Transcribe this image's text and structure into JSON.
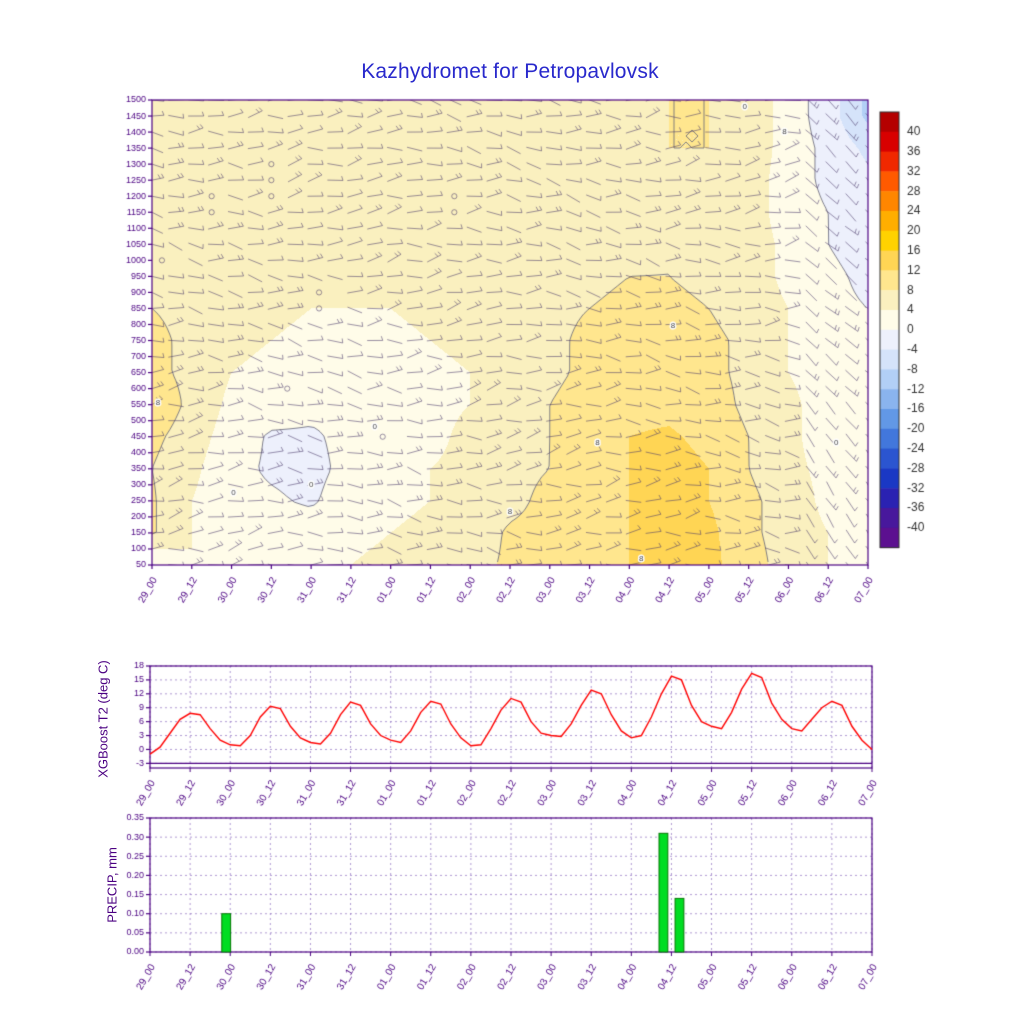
{
  "title": "Kazhydromet for Petropavlovsk",
  "style": {
    "axis_color": "#4b0082",
    "grid_color": "#9b7fc7",
    "title_color": "#2929cc",
    "barb_color": "#4a3a6a",
    "contour_line_color": "#666677",
    "colorbar_label_color": "#333333"
  },
  "time_labels": [
    "29_00",
    "29_12",
    "30_00",
    "30_12",
    "31_00",
    "31_12",
    "01_00",
    "01_12",
    "02_00",
    "02_12",
    "03_00",
    "03_12",
    "04_00",
    "04_12",
    "05_00",
    "05_12",
    "06_00",
    "06_12",
    "07_00"
  ],
  "chart_data": [
    {
      "type": "heatmap",
      "name": "temperature-time-height-section",
      "y_ticks": [
        50,
        100,
        150,
        200,
        250,
        300,
        350,
        400,
        450,
        500,
        550,
        600,
        650,
        700,
        750,
        800,
        850,
        900,
        950,
        1000,
        1050,
        1100,
        1150,
        1200,
        1250,
        1300,
        1350,
        1400,
        1450,
        1500
      ],
      "levels": [
        50,
        150,
        250,
        350,
        450,
        550,
        650,
        750,
        850,
        950,
        1050,
        1150,
        1250,
        1350,
        1450
      ],
      "values_grid_degC": [
        [
          -0.5,
          4,
          3,
          3,
          3,
          4,
          5,
          6,
          7,
          8.5,
          9,
          10,
          12,
          14,
          13,
          10,
          6,
          4,
          3
        ],
        [
          8.5,
          4,
          2,
          2,
          2,
          3,
          4,
          5,
          6,
          8.5,
          9,
          10,
          12,
          15,
          13,
          9,
          6,
          4,
          2
        ],
        [
          8.5,
          4,
          1,
          0.5,
          -0.5,
          2,
          3,
          4,
          6,
          7,
          9,
          10,
          12,
          14,
          12,
          9,
          6,
          3,
          2
        ],
        [
          8,
          5,
          1,
          -0.5,
          -1,
          1,
          3,
          4,
          5,
          7,
          8,
          10,
          12,
          13.5,
          12,
          8,
          5,
          3,
          2
        ],
        [
          9,
          6,
          2,
          -0.5,
          -0.5,
          1,
          2,
          3,
          5,
          6,
          8,
          10,
          12,
          12.5,
          11,
          8,
          5,
          2,
          1
        ],
        [
          11,
          7,
          3,
          2,
          1,
          0.5,
          2,
          3,
          4,
          6,
          8,
          10,
          11,
          11,
          10,
          7,
          5,
          2,
          1
        ],
        [
          9,
          7,
          4,
          3,
          2,
          2,
          2,
          3,
          4,
          6,
          7,
          9,
          10,
          10,
          9,
          7,
          4,
          2,
          1
        ],
        [
          9,
          7,
          5,
          4,
          3,
          3,
          3,
          4,
          5,
          6,
          7,
          9,
          10,
          10,
          9,
          7,
          4,
          2,
          0
        ],
        [
          8,
          7,
          6,
          5,
          4,
          4,
          4,
          5,
          5,
          6,
          7,
          8,
          9,
          9,
          8,
          6,
          4,
          1,
          0
        ],
        [
          7,
          6,
          6,
          6,
          5,
          5,
          5,
          6,
          6,
          6,
          7,
          7,
          8,
          8,
          7,
          6,
          3,
          1,
          -1
        ],
        [
          6,
          6,
          6,
          6,
          6,
          6,
          6,
          6,
          6,
          6,
          7,
          7,
          7,
          8,
          7,
          6,
          3,
          0,
          -2
        ],
        [
          6,
          6,
          6,
          6,
          6,
          6,
          6,
          6,
          6,
          6,
          6,
          7,
          7,
          8,
          7,
          6,
          2,
          0,
          -2
        ],
        [
          6,
          6,
          6,
          6,
          6,
          6,
          6,
          6,
          6,
          6,
          6,
          7,
          7,
          8,
          7,
          6,
          2,
          -1,
          -3
        ],
        [
          6,
          6,
          6,
          6,
          6,
          6,
          6,
          6,
          6,
          6,
          6,
          7,
          7,
          8,
          8,
          7,
          2,
          -1,
          -5
        ],
        [
          6,
          6,
          6,
          6,
          6,
          6,
          6,
          6,
          6,
          6,
          6,
          7,
          7,
          8,
          8,
          7,
          2,
          -2,
          -9
        ]
      ],
      "contour_levels_labeled": [
        0,
        8
      ],
      "contour_labels": [
        {
          "text": "8",
          "t": 0.15,
          "lev": 555
        },
        {
          "text": "0",
          "t": 2.05,
          "lev": 275
        },
        {
          "text": "0",
          "t": 4.0,
          "lev": 300
        },
        {
          "text": "0",
          "t": 5.6,
          "lev": 480
        },
        {
          "text": "8",
          "t": 9.0,
          "lev": 215
        },
        {
          "text": "8",
          "t": 11.2,
          "lev": 430
        },
        {
          "text": "8",
          "t": 12.3,
          "lev": 70
        },
        {
          "text": "8",
          "t": 13.1,
          "lev": 795
        },
        {
          "text": "0",
          "t": 17.2,
          "lev": 430
        },
        {
          "text": "8",
          "t": 15.9,
          "lev": 1400
        },
        {
          "text": "0",
          "t": 14.9,
          "lev": 1480
        }
      ],
      "calm_circles": [
        [
          1.5,
          1200
        ],
        [
          1.5,
          1150
        ],
        [
          3.0,
          1300
        ],
        [
          3.0,
          1250
        ],
        [
          3.0,
          1200
        ],
        [
          4.2,
          900
        ],
        [
          4.2,
          850
        ],
        [
          7.6,
          1200
        ],
        [
          7.6,
          1150
        ],
        [
          3.4,
          600
        ],
        [
          5.8,
          450
        ],
        [
          0.25,
          1000
        ]
      ],
      "colorbar": {
        "tick_labels": [
          40,
          36,
          32,
          28,
          24,
          20,
          16,
          12,
          8,
          4,
          0,
          -4,
          -8,
          -12,
          -16,
          -20,
          -24,
          -28,
          -32,
          -36,
          -40
        ],
        "segment_colors": [
          "#b40000",
          "#d80000",
          "#f02800",
          "#ff5a00",
          "#ff8600",
          "#ffae00",
          "#ffd200",
          "#ffd554",
          "#ffe68e",
          "#faf0bf",
          "#fffce9",
          "#edf0fc",
          "#d5e3fa",
          "#b2cff6",
          "#8ab4ee",
          "#6298e6",
          "#4277dc",
          "#2b55d0",
          "#1a38c4",
          "#2a22b2",
          "#48189c",
          "#5c1090"
        ]
      }
    },
    {
      "type": "line",
      "ylabel": "XGBoost T2 (deg C)",
      "yticks": [
        -3,
        0,
        3,
        6,
        9,
        12,
        15,
        18
      ],
      "ylim": [
        -4,
        18
      ],
      "baseline_value": -3,
      "line_color": "#ff0000",
      "x_step_index": 0.25,
      "values": [
        -1.0,
        0.5,
        3.5,
        6.5,
        7.8,
        7.5,
        4.5,
        2.0,
        1.0,
        0.8,
        3.0,
        7.0,
        9.3,
        8.8,
        5.0,
        2.5,
        1.5,
        1.2,
        3.5,
        7.5,
        10.2,
        9.5,
        5.5,
        3.0,
        2.0,
        1.5,
        4.0,
        8.0,
        10.4,
        9.8,
        5.5,
        2.5,
        0.8,
        1.0,
        4.5,
        8.5,
        11.0,
        10.2,
        6.0,
        3.5,
        3.0,
        2.8,
        5.5,
        9.5,
        12.8,
        12.0,
        7.5,
        4.0,
        2.5,
        3.0,
        7.0,
        12.0,
        15.8,
        15.0,
        9.5,
        6.0,
        5.0,
        4.5,
        8.0,
        13.0,
        16.4,
        15.5,
        10.0,
        6.5,
        4.5,
        4.0,
        6.5,
        9.0,
        10.4,
        9.5,
        5.0,
        2.0,
        0.0
      ]
    },
    {
      "type": "bar",
      "ylabel": "PRECIP, mm",
      "ytick_labels": [
        "0.00",
        "0.05",
        "0.10",
        "0.15",
        "0.20",
        "0.25",
        "0.30",
        "0.35"
      ],
      "yticks": [
        0,
        0.05,
        0.1,
        0.15,
        0.2,
        0.25,
        0.3,
        0.35
      ],
      "ylim": [
        0,
        0.35
      ],
      "bar_width_index": 0.22,
      "bar_color": "#00dd22",
      "bar_edge_color": "#007700",
      "bars": [
        {
          "x_index": 1.9,
          "value": 0.1
        },
        {
          "x_index": 12.8,
          "value": 0.31
        },
        {
          "x_index": 13.2,
          "value": 0.14
        }
      ]
    }
  ]
}
